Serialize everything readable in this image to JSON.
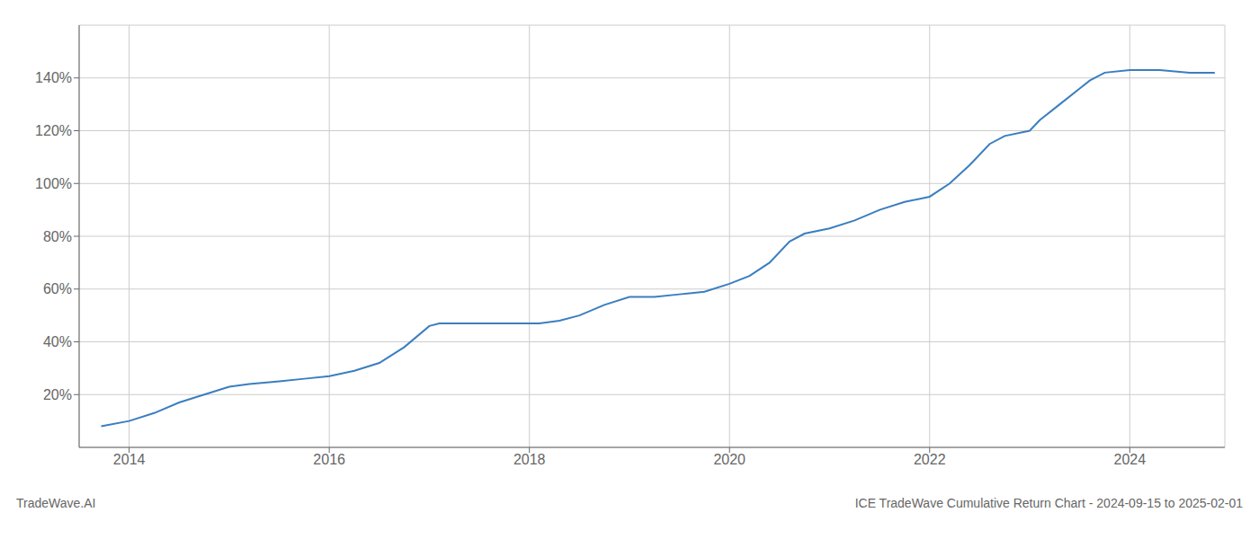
{
  "chart_data": {
    "type": "line",
    "title": "ICE TradeWave Cumulative Return Chart - 2024-09-15 to 2025-02-01",
    "annotations": [
      "TradeWave.AI"
    ],
    "x": [
      2013.72,
      2014.0,
      2014.25,
      2014.5,
      2014.75,
      2015.0,
      2015.2,
      2015.5,
      2015.75,
      2016.0,
      2016.25,
      2016.5,
      2016.75,
      2017.0,
      2017.1,
      2017.2,
      2017.5,
      2017.7,
      2018.0,
      2018.1,
      2018.3,
      2018.5,
      2018.75,
      2019.0,
      2019.25,
      2019.5,
      2019.75,
      2020.0,
      2020.2,
      2020.4,
      2020.6,
      2020.75,
      2021.0,
      2021.25,
      2021.5,
      2021.75,
      2022.0,
      2022.2,
      2022.4,
      2022.6,
      2022.75,
      2023.0,
      2023.1,
      2023.3,
      2023.5,
      2023.6,
      2023.75,
      2024.0,
      2024.3,
      2024.6,
      2024.85
    ],
    "values": [
      8,
      10,
      13,
      17,
      20,
      23,
      24,
      25,
      26,
      27,
      29,
      32,
      38,
      46,
      47,
      47,
      47,
      47,
      47,
      47,
      48,
      50,
      54,
      57,
      57,
      58,
      59,
      62,
      65,
      70,
      78,
      81,
      83,
      86,
      90,
      93,
      95,
      100,
      107,
      115,
      118,
      120,
      124,
      130,
      136,
      139,
      142,
      143,
      143,
      142,
      142
    ],
    "color": "#3a7ebf",
    "xlim": [
      2013.5,
      2024.95
    ],
    "ylim": [
      0,
      160
    ],
    "xticks": [
      2014,
      2016,
      2018,
      2020,
      2022,
      2024
    ],
    "yticks": [
      {
        "value": 20,
        "label": "20%"
      },
      {
        "value": 40,
        "label": "40%"
      },
      {
        "value": 60,
        "label": "60%"
      },
      {
        "value": 80,
        "label": "80%"
      },
      {
        "value": 100,
        "label": "100%"
      },
      {
        "value": 120,
        "label": "120%"
      },
      {
        "value": 140,
        "label": "140%"
      }
    ],
    "grid": true
  }
}
